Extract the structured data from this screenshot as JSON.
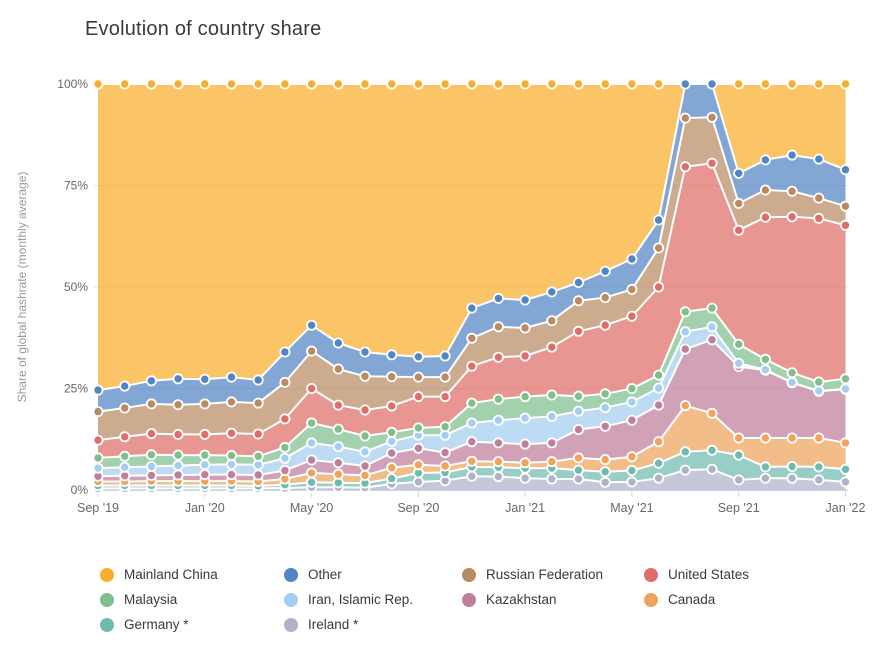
{
  "chart_data": {
    "type": "area",
    "stacking": "percent",
    "title": "Evolution of country share",
    "xlabel": "",
    "ylabel": "Share of global hashrate (monthly average)",
    "ylim": [
      0,
      100
    ],
    "grid": true,
    "legend_position": "bottom",
    "y_ticks": [
      {
        "value": 0,
        "label": "0%"
      },
      {
        "value": 25,
        "label": "25%"
      },
      {
        "value": 50,
        "label": "50%"
      },
      {
        "value": 75,
        "label": "75%"
      },
      {
        "value": 100,
        "label": "100%"
      }
    ],
    "x_ticks": [
      {
        "index": 0,
        "label": "Sep '19"
      },
      {
        "index": 4,
        "label": "Jan '20"
      },
      {
        "index": 8,
        "label": "May '20"
      },
      {
        "index": 12,
        "label": "Sep '20"
      },
      {
        "index": 16,
        "label": "Jan '21"
      },
      {
        "index": 20,
        "label": "May '21"
      },
      {
        "index": 24,
        "label": "Sep '21"
      },
      {
        "index": 28,
        "label": "Jan '22"
      }
    ],
    "months": [
      "Sep '19",
      "Oct '19",
      "Nov '19",
      "Dec '19",
      "Jan '20",
      "Feb '20",
      "Mar '20",
      "Apr '20",
      "May '20",
      "Jun '20",
      "Jul '20",
      "Aug '20",
      "Sep '20",
      "Oct '20",
      "Nov '20",
      "Dec '20",
      "Jan '21",
      "Feb '21",
      "Mar '21",
      "Apr '21",
      "May '21",
      "Jun '21",
      "Jul '21",
      "Aug '21",
      "Sep '21",
      "Oct '21",
      "Nov '21",
      "Dec '21",
      "Jan '22"
    ],
    "series_note": "series listed bottom-to-top of the stack; values are % share per month",
    "series": [
      {
        "name": "Ireland *",
        "color": "#AEB3C9",
        "values": [
          0.4,
          0.4,
          0.4,
          0.4,
          0.4,
          0.4,
          0.4,
          0.5,
          0.7,
          0.7,
          0.6,
          1.5,
          2.0,
          2.3,
          3.4,
          3.3,
          2.9,
          2.7,
          2.7,
          1.9,
          2.0,
          2.9,
          4.9,
          5.1,
          2.5,
          2.9,
          2.9,
          2.5,
          2.0
        ]
      },
      {
        "name": "Germany *",
        "color": "#70BBB0",
        "values": [
          0.7,
          0.7,
          0.7,
          0.7,
          0.7,
          0.7,
          0.6,
          0.8,
          1.2,
          1.1,
          1.1,
          1.3,
          2.2,
          2.0,
          2.3,
          2.3,
          2.5,
          2.7,
          2.2,
          2.6,
          2.8,
          3.7,
          4.5,
          4.7,
          6.1,
          2.8,
          2.9,
          3.2,
          3.1
        ]
      },
      {
        "name": "Canada",
        "color": "#EFA35C",
        "values": [
          1.0,
          1.0,
          1.1,
          1.1,
          1.1,
          1.1,
          1.1,
          1.4,
          2.3,
          2.1,
          1.9,
          2.7,
          2.0,
          1.6,
          1.4,
          1.4,
          1.3,
          1.6,
          3.0,
          3.0,
          3.4,
          5.3,
          11.4,
          9.1,
          4.2,
          7.1,
          7.0,
          7.1,
          6.5
        ]
      },
      {
        "name": "Kazakhstan",
        "color": "#BF7E9B",
        "values": [
          1.3,
          1.4,
          1.4,
          1.5,
          1.6,
          1.6,
          1.6,
          2.1,
          3.2,
          2.8,
          2.3,
          3.6,
          4.1,
          3.3,
          4.8,
          4.6,
          4.6,
          4.6,
          7.0,
          8.2,
          9.0,
          9.0,
          13.9,
          18.1,
          17.6,
          16.7,
          13.6,
          11.5,
          13.2
        ]
      },
      {
        "name": "Iran, Islamic Rep.",
        "color": "#A5CDF0",
        "values": [
          2.0,
          2.1,
          2.2,
          2.3,
          2.4,
          2.5,
          2.5,
          3.0,
          4.2,
          4.0,
          3.5,
          2.9,
          3.2,
          4.3,
          4.6,
          5.6,
          6.4,
          6.5,
          4.5,
          4.6,
          4.5,
          4.2,
          4.3,
          3.2,
          0.8,
          0.1,
          0.1,
          0.1,
          0.1
        ]
      },
      {
        "name": "Malaysia",
        "color": "#80BE8D",
        "values": [
          2.5,
          2.7,
          2.9,
          2.6,
          2.4,
          2.2,
          2.1,
          2.7,
          4.9,
          4.3,
          3.9,
          2.2,
          1.8,
          2.1,
          4.9,
          5.2,
          5.3,
          5.3,
          3.7,
          3.4,
          3.3,
          3.2,
          4.9,
          4.6,
          4.7,
          2.6,
          2.4,
          2.2,
          2.5
        ]
      },
      {
        "name": "United States",
        "color": "#DF6D68",
        "values": [
          4.4,
          4.8,
          5.2,
          5.1,
          5.1,
          5.5,
          5.5,
          7.0,
          8.5,
          5.9,
          6.4,
          6.5,
          7.7,
          7.4,
          9.1,
          10.3,
          10.0,
          11.8,
          16.0,
          16.9,
          17.8,
          21.7,
          35.7,
          35.7,
          28.1,
          35.0,
          38.4,
          40.3,
          37.8
        ]
      },
      {
        "name": "Russian Federation",
        "color": "#B98B63",
        "values": [
          7.0,
          7.1,
          7.3,
          7.3,
          7.5,
          7.7,
          7.6,
          9.0,
          9.2,
          8.9,
          8.3,
          7.2,
          4.8,
          4.8,
          6.9,
          7.5,
          6.9,
          6.5,
          7.5,
          6.8,
          6.6,
          9.6,
          12.0,
          11.3,
          6.6,
          6.7,
          6.3,
          5.0,
          4.7
        ]
      },
      {
        "name": "Other",
        "color": "#5285C4",
        "values": [
          5.3,
          5.4,
          5.7,
          6.4,
          6.1,
          6.1,
          5.7,
          7.5,
          6.4,
          6.4,
          6.0,
          5.4,
          5.0,
          5.2,
          7.4,
          7.0,
          6.9,
          7.1,
          4.5,
          6.5,
          7.5,
          6.9,
          8.4,
          8.2,
          7.4,
          7.4,
          8.9,
          9.6,
          9.0
        ]
      },
      {
        "name": "Mainland China",
        "color": "#F9AD2D",
        "values": [
          75.4,
          74.4,
          73.1,
          72.6,
          72.7,
          72.2,
          72.9,
          66.0,
          59.4,
          63.8,
          66.0,
          66.7,
          67.2,
          67.0,
          55.2,
          52.8,
          53.2,
          51.2,
          48.9,
          46.1,
          43.1,
          33.5,
          0,
          0,
          22.0,
          18.7,
          17.5,
          18.5,
          21.1
        ]
      }
    ],
    "legend_display_order": [
      "Mainland China",
      "Other",
      "Russian Federation",
      "United States",
      "Malaysia",
      "Iran, Islamic Rep.",
      "Kazakhstan",
      "Canada",
      "Germany *",
      "Ireland *"
    ]
  },
  "style_colors": {
    "grid_line": "#E6E6E6",
    "axis_line": "#CCD6EB",
    "tick_label": "#666666",
    "axis_title": "#999999",
    "title_text": "#3A3A3A",
    "band_boundary": "#FFFFFF"
  }
}
